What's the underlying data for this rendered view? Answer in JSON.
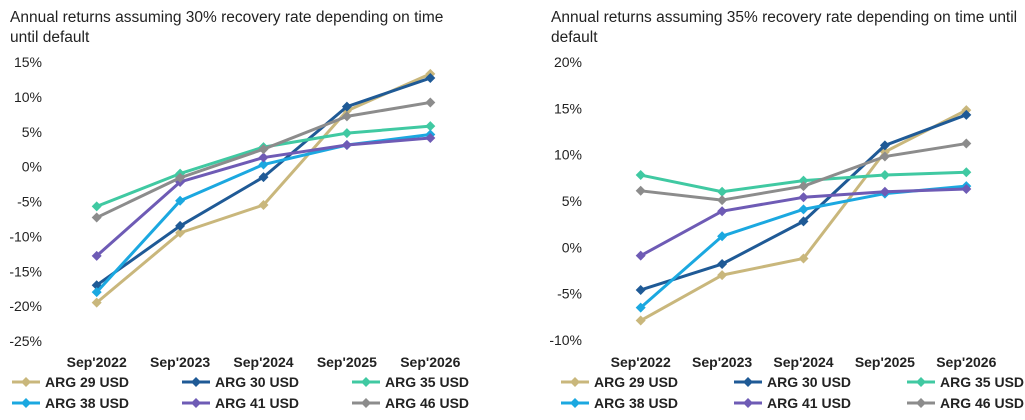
{
  "chart_data": [
    {
      "type": "line",
      "title": "Annual returns assuming 30% recovery rate depending on time until default",
      "categories": [
        "Sep'2022",
        "Sep'2023",
        "Sep'2024",
        "Sep'2025",
        "Sep'2026"
      ],
      "ylim": [
        -25,
        15
      ],
      "yticks": [
        -25,
        -20,
        -15,
        -10,
        -5,
        0,
        5,
        10,
        15
      ],
      "ytick_labels": [
        "-25%",
        "-20%",
        "-15%",
        "-10%",
        "-5%",
        "0%",
        "5%",
        "10%",
        "15%"
      ],
      "grid": false,
      "legend_position": "bottom",
      "series": [
        {
          "name": "ARG 29 USD",
          "color": "#C9B77C",
          "values": [
            -19.5,
            -9.5,
            -5.5,
            8.0,
            13.3
          ]
        },
        {
          "name": "ARG 30 USD",
          "color": "#1F5A96",
          "values": [
            -17.0,
            -8.5,
            -1.5,
            8.6,
            12.7
          ]
        },
        {
          "name": "ARG 35 USD",
          "color": "#40C9A2",
          "values": [
            -5.7,
            -1.0,
            2.8,
            4.8,
            5.8
          ]
        },
        {
          "name": "ARG 38 USD",
          "color": "#1BA8E0",
          "values": [
            -18.0,
            -4.9,
            0.3,
            3.1,
            4.6
          ]
        },
        {
          "name": "ARG 41 USD",
          "color": "#6E5BB5",
          "values": [
            -12.8,
            -2.2,
            1.3,
            3.1,
            4.1
          ]
        },
        {
          "name": "ARG 46 USD",
          "color": "#8C8C8C",
          "values": [
            -7.3,
            -1.6,
            2.5,
            7.2,
            9.2
          ]
        }
      ]
    },
    {
      "type": "line",
      "title": "Annual returns assuming 35% recovery rate depending on time until default",
      "categories": [
        "Sep'2022",
        "Sep'2023",
        "Sep'2024",
        "Sep'2025",
        "Sep'2026"
      ],
      "ylim": [
        -10,
        20
      ],
      "yticks": [
        -10,
        -5,
        0,
        5,
        10,
        15,
        20
      ],
      "ytick_labels": [
        "-10%",
        "-5%",
        "0%",
        "5%",
        "10%",
        "15%",
        "20%"
      ],
      "grid": false,
      "legend_position": "bottom",
      "series": [
        {
          "name": "ARG 29 USD",
          "color": "#C9B77C",
          "values": [
            -7.9,
            -3.0,
            -1.2,
            10.3,
            14.8
          ]
        },
        {
          "name": "ARG 30 USD",
          "color": "#1F5A96",
          "values": [
            -4.6,
            -1.8,
            2.8,
            11.0,
            14.3
          ]
        },
        {
          "name": "ARG 35 USD",
          "color": "#40C9A2",
          "values": [
            7.8,
            6.0,
            7.2,
            7.8,
            8.1
          ]
        },
        {
          "name": "ARG 38 USD",
          "color": "#1BA8E0",
          "values": [
            -6.5,
            1.2,
            4.1,
            5.8,
            6.6
          ]
        },
        {
          "name": "ARG 41 USD",
          "color": "#6E5BB5",
          "values": [
            -0.9,
            3.9,
            5.4,
            6.0,
            6.3
          ]
        },
        {
          "name": "ARG 46 USD",
          "color": "#8C8C8C",
          "values": [
            6.1,
            5.1,
            6.6,
            9.8,
            11.2
          ]
        }
      ]
    }
  ]
}
